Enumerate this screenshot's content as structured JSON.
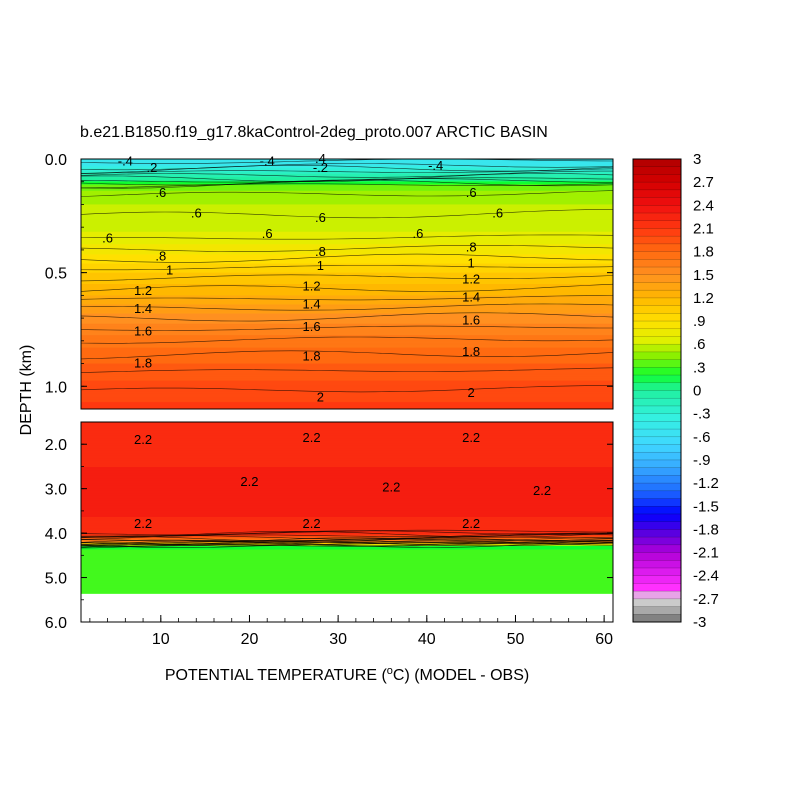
{
  "chart_data": {
    "type": "heatmap",
    "title": "b.e21.B1850.f19_g17.8kaControl-2deg_proto.007 ARCTIC BASIN",
    "xlabel": "POTENTIAL TEMPERATURE (",
    "xlabel_sup": "o",
    "xlabel_tail": "C) (MODEL - OBS)",
    "ylabel": "DEPTH (km)",
    "xlim": [
      1,
      61
    ],
    "x_ticks": [
      10,
      20,
      30,
      40,
      50,
      60
    ],
    "x_tick_labels": [
      "10",
      "20",
      "30",
      "40",
      "50",
      "60"
    ],
    "upper_panel": {
      "ylim": [
        0.0,
        1.1
      ],
      "y_ticks": [
        0.0,
        0.5,
        1.0
      ],
      "y_tick_labels": [
        "0.0",
        "0.5",
        "1.0"
      ]
    },
    "lower_panel": {
      "ylim": [
        1.5,
        6.0
      ],
      "y_ticks": [
        2.0,
        3.0,
        4.0,
        5.0,
        6.0
      ],
      "y_tick_labels": [
        "2.0",
        "3.0",
        "4.0",
        "5.0",
        "6.0"
      ],
      "no_data_below_depth": 5.35
    },
    "colorbar": {
      "min": -3.0,
      "max": 3.0,
      "step": 0.1,
      "labels": [
        "3",
        "2.7",
        "2.4",
        "2.1",
        "1.8",
        "1.5",
        "1.2",
        ".9",
        ".6",
        ".3",
        "0",
        "-.3",
        "-.6",
        "-.9",
        "-1.2",
        "-1.5",
        "-1.8",
        "-2.1",
        "-2.4",
        "-2.7",
        "-3"
      ],
      "label_values": [
        3.0,
        2.7,
        2.4,
        2.1,
        1.8,
        1.5,
        1.2,
        0.9,
        0.6,
        0.3,
        0.0,
        -0.3,
        -0.6,
        -0.9,
        -1.2,
        -1.5,
        -1.8,
        -2.1,
        -2.4,
        -2.7,
        -3.0
      ]
    },
    "profile": {
      "depth_km": [
        0.0,
        0.03,
        0.06,
        0.09,
        0.12,
        0.16,
        0.2,
        0.25,
        0.3,
        0.35,
        0.4,
        0.45,
        0.5,
        0.55,
        0.6,
        0.65,
        0.7,
        0.75,
        0.8,
        0.85,
        0.9,
        0.95,
        1.0,
        1.05,
        1.1,
        1.5,
        2.0,
        2.5,
        3.0,
        3.5,
        4.0,
        4.2,
        4.3,
        4.4,
        5.35
      ],
      "value": [
        -0.55,
        -0.45,
        -0.2,
        0.0,
        0.4,
        0.5,
        0.55,
        0.6,
        0.62,
        0.7,
        0.8,
        0.92,
        1.05,
        1.15,
        1.25,
        1.38,
        1.5,
        1.6,
        1.7,
        1.78,
        1.85,
        1.92,
        1.98,
        2.03,
        2.08,
        2.2,
        2.22,
        2.25,
        2.28,
        2.26,
        2.22,
        1.5,
        0.2,
        0.28,
        0.3
      ]
    },
    "contour_labels": [
      {
        "text": "-.4",
        "x": 6,
        "depth": 0.01
      },
      {
        "text": "-.4",
        "x": 22,
        "depth": 0.01
      },
      {
        "text": ".4",
        "x": 28,
        "depth": 0.0
      },
      {
        "text": "-.4",
        "x": 41,
        "depth": 0.03
      },
      {
        "text": ".2",
        "x": 9,
        "depth": 0.04
      },
      {
        "text": "-.2",
        "x": 28,
        "depth": 0.04
      },
      {
        "text": ".6",
        "x": 10,
        "depth": 0.15
      },
      {
        "text": ".6",
        "x": 14,
        "depth": 0.24
      },
      {
        "text": ".6",
        "x": 28,
        "depth": 0.26
      },
      {
        "text": ".6",
        "x": 45,
        "depth": 0.15
      },
      {
        "text": ".6",
        "x": 48,
        "depth": 0.24
      },
      {
        "text": ".6",
        "x": 4,
        "depth": 0.35
      },
      {
        "text": ".6",
        "x": 22,
        "depth": 0.33
      },
      {
        "text": ".6",
        "x": 39,
        "depth": 0.33
      },
      {
        "text": ".8",
        "x": 10,
        "depth": 0.43
      },
      {
        "text": ".8",
        "x": 28,
        "depth": 0.41
      },
      {
        "text": ".8",
        "x": 45,
        "depth": 0.39
      },
      {
        "text": "1",
        "x": 11,
        "depth": 0.49
      },
      {
        "text": "1",
        "x": 28,
        "depth": 0.47
      },
      {
        "text": "1",
        "x": 45,
        "depth": 0.46
      },
      {
        "text": "1.2",
        "x": 8,
        "depth": 0.58
      },
      {
        "text": "1.2",
        "x": 27,
        "depth": 0.56
      },
      {
        "text": "1.2",
        "x": 45,
        "depth": 0.53
      },
      {
        "text": "1.4",
        "x": 8,
        "depth": 0.66
      },
      {
        "text": "1.4",
        "x": 27,
        "depth": 0.64
      },
      {
        "text": "1.4",
        "x": 45,
        "depth": 0.61
      },
      {
        "text": "1.6",
        "x": 8,
        "depth": 0.76
      },
      {
        "text": "1.6",
        "x": 27,
        "depth": 0.74
      },
      {
        "text": "1.6",
        "x": 45,
        "depth": 0.71
      },
      {
        "text": "1.8",
        "x": 8,
        "depth": 0.9
      },
      {
        "text": "1.8",
        "x": 27,
        "depth": 0.87
      },
      {
        "text": "1.8",
        "x": 45,
        "depth": 0.85
      },
      {
        "text": "2",
        "x": 28,
        "depth": 1.05
      },
      {
        "text": "2",
        "x": 45,
        "depth": 1.03
      },
      {
        "text": "2.2",
        "x": 8,
        "depth": 1.9
      },
      {
        "text": "2.2",
        "x": 27,
        "depth": 1.86
      },
      {
        "text": "2.2",
        "x": 45,
        "depth": 1.86
      },
      {
        "text": "2.2",
        "x": 20,
        "depth": 2.85
      },
      {
        "text": "2.2",
        "x": 36,
        "depth": 2.97
      },
      {
        "text": "2.2",
        "x": 53,
        "depth": 3.05
      },
      {
        "text": "2.2",
        "x": 8,
        "depth": 3.8
      },
      {
        "text": "2.2",
        "x": 27,
        "depth": 3.8
      },
      {
        "text": "2.2",
        "x": 45,
        "depth": 3.8
      }
    ]
  }
}
